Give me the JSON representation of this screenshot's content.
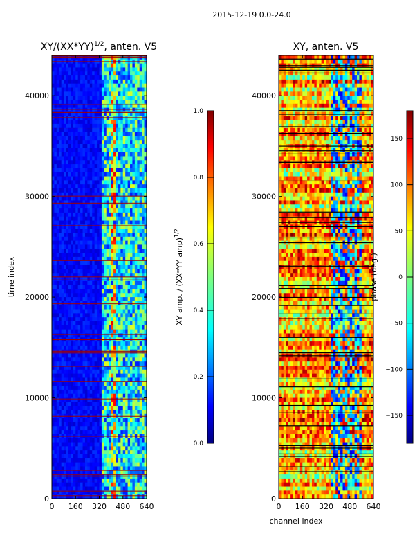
{
  "suptitle": "2015-12-19 0.0-24.0",
  "colormap": [
    "#00007f",
    "#0000ff",
    "#007fff",
    "#00ffff",
    "#7fff7f",
    "#ffff00",
    "#ff7f00",
    "#ff0000",
    "#7f0000"
  ],
  "chart_data": [
    {
      "type": "heatmap",
      "title_main": "XY/(XX*YY)",
      "title_sup": "1/2",
      "title_tail": ", anten. V5",
      "xlabel": "",
      "ylabel": "time index",
      "xlim": [
        0,
        640
      ],
      "ylim": [
        0,
        44000
      ],
      "xticks": [
        0,
        160,
        320,
        480,
        640
      ],
      "yticks": [
        0,
        10000,
        20000,
        30000,
        40000
      ],
      "colorbar": {
        "label_main": "XY amp. / (XX*YY amp)",
        "label_sup": "1/2",
        "range": [
          0.0,
          1.0
        ],
        "ticks": [
          "0.0",
          "0.2",
          "0.4",
          "0.6",
          "0.8",
          "1.0"
        ]
      }
    },
    {
      "type": "heatmap",
      "title_main": "XY, anten. V5",
      "xlabel": "channel index",
      "ylabel": "",
      "xlim": [
        0,
        640
      ],
      "ylim": [
        0,
        44000
      ],
      "xticks": [
        0,
        160,
        320,
        480,
        640
      ],
      "yticks": [
        0,
        10000,
        20000,
        30000,
        40000
      ],
      "colorbar": {
        "label_main": "phase (deg.)",
        "range": [
          -180,
          180
        ],
        "ticks": [
          "−150",
          "−100",
          "−50",
          "0",
          "50",
          "100",
          "150"
        ]
      }
    }
  ]
}
